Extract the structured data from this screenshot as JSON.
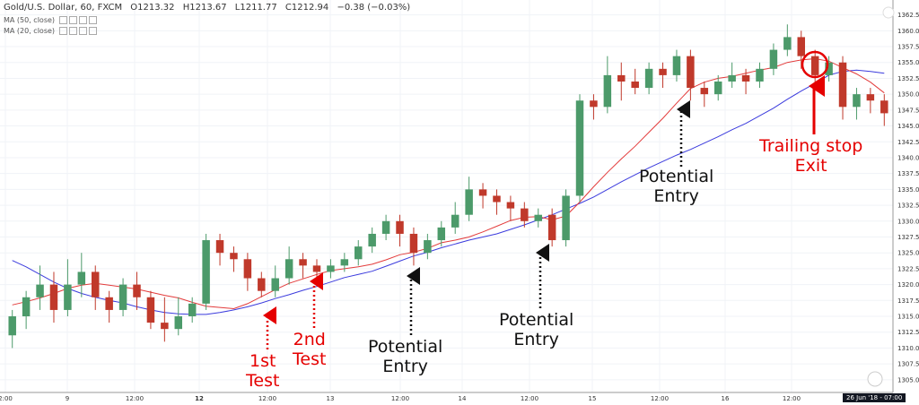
{
  "header": {
    "symbol": "Gold/U.S. Dollar, 60, FXCM",
    "open": "O1213.32",
    "high": "H1213.67",
    "low": "L1211.77",
    "close": "C1212.94",
    "change": "−0.38 (−0.03%)"
  },
  "indicators": [
    {
      "label": "MA (50, close)",
      "color": "#3b3bdd"
    },
    {
      "label": "MA (20, close)",
      "color": "#e33b3b"
    }
  ],
  "annotations": {
    "first_test": [
      "1st",
      "Test"
    ],
    "second_test": [
      "2nd",
      "Test"
    ],
    "entry1": [
      "Potential",
      "Entry"
    ],
    "entry2": [
      "Potential",
      "Entry"
    ],
    "entry3": [
      "Potential",
      "Entry"
    ],
    "exit": [
      "Trailing stop",
      "Exit"
    ]
  },
  "date_badge": "26 Jun '18 - 07:00",
  "colors": {
    "up": "#4c9a6a",
    "down": "#c0392b",
    "ma20": "#e33b3b",
    "ma50": "#3b3bdd",
    "annotation_red": "#e50000"
  },
  "chart_data": {
    "type": "candlestick",
    "y_ticks": [
      "1362.50",
      "1360.00",
      "1357.50",
      "1355.00",
      "1352.50",
      "1350.00",
      "1347.50",
      "1345.00",
      "1342.50",
      "1340.00",
      "1337.50",
      "1335.00",
      "1332.50",
      "1330.00",
      "1327.50",
      "1325.00",
      "1322.50",
      "1320.00",
      "1317.50",
      "1315.00",
      "1312.50",
      "1310.00",
      "1307.50",
      "1305.00"
    ],
    "ylim": [
      1303,
      1364
    ],
    "x_ticks": [
      "2:00",
      "9",
      "12:00",
      "12",
      "12:00",
      "13",
      "12:00",
      "14",
      "12:00",
      "15",
      "12:00",
      "16",
      "12:00"
    ],
    "ma20": [
      1316.8,
      1317.3,
      1317.9,
      1318.6,
      1319.4,
      1319.9,
      1320.2,
      1319.9,
      1319.6,
      1319.3,
      1318.8,
      1318.3,
      1317.9,
      1317.2,
      1316.6,
      1316.4,
      1316.2,
      1317,
      1318.1,
      1319.2,
      1320.2,
      1320.9,
      1321.6,
      1322.2,
      1322.5,
      1322.8,
      1323.2,
      1323.9,
      1324.7,
      1325.1,
      1325.7,
      1326.6,
      1327,
      1327.5,
      1328.3,
      1329.2,
      1330.1,
      1330.6,
      1330.7,
      1330.2,
      1330.8,
      1333,
      1335.4,
      1337.7,
      1339.8,
      1341.8,
      1344,
      1346.2,
      1348.6,
      1350.9,
      1351.9,
      1352.5,
      1352.8,
      1353.3,
      1353.8,
      1354.2,
      1355,
      1355.4,
      1355.6,
      1355.2,
      1354.2,
      1353.2,
      1351.9,
      1350.2
    ],
    "ma50": [
      1323.8,
      1322.8,
      1321.6,
      1320.4,
      1319.4,
      1318.6,
      1318,
      1317.5,
      1317.1,
      1316.5,
      1316,
      1315.6,
      1315.4,
      1315.3,
      1315.3,
      1315.6,
      1316,
      1316.5,
      1317.1,
      1317.8,
      1318.4,
      1319.1,
      1319.7,
      1320.4,
      1321.1,
      1321.6,
      1322.1,
      1322.9,
      1323.7,
      1324.5,
      1325.1,
      1325.8,
      1326.4,
      1327,
      1327.5,
      1328,
      1328.7,
      1329.4,
      1330.2,
      1331,
      1331.9,
      1332.8,
      1333.8,
      1335,
      1336.2,
      1337.3,
      1338.4,
      1339.4,
      1340.4,
      1341.3,
      1342.3,
      1343.3,
      1344.4,
      1345.4,
      1346.6,
      1347.8,
      1349.2,
      1350.5,
      1351.7,
      1353,
      1353.6,
      1353.8,
      1353.6,
      1353.3
    ],
    "candles": [
      [
        1312,
        1315,
        1310,
        1316
      ],
      [
        1315,
        1318,
        1313,
        1319
      ],
      [
        1318,
        1320,
        1316,
        1323
      ],
      [
        1320,
        1316,
        1314,
        1322
      ],
      [
        1316,
        1320,
        1315,
        1324
      ],
      [
        1320,
        1322,
        1318,
        1325
      ],
      [
        1322,
        1318,
        1316,
        1323
      ],
      [
        1318,
        1316,
        1314,
        1319
      ],
      [
        1316,
        1320,
        1315,
        1321
      ],
      [
        1320,
        1318,
        1316,
        1322
      ],
      [
        1318,
        1314,
        1313,
        1319
      ],
      [
        1314,
        1313,
        1311,
        1318
      ],
      [
        1313,
        1315,
        1312,
        1318
      ],
      [
        1315,
        1317,
        1314,
        1318
      ],
      [
        1317,
        1327,
        1316,
        1328
      ],
      [
        1327,
        1325,
        1323,
        1328
      ],
      [
        1325,
        1324,
        1322,
        1326
      ],
      [
        1324,
        1321,
        1319,
        1325
      ],
      [
        1321,
        1319,
        1318,
        1322
      ],
      [
        1319,
        1321,
        1318,
        1323
      ],
      [
        1321,
        1324,
        1320,
        1326
      ],
      [
        1324,
        1323,
        1321,
        1325
      ],
      [
        1323,
        1322,
        1320,
        1324
      ],
      [
        1322,
        1323,
        1321,
        1324
      ],
      [
        1323,
        1324,
        1322,
        1325
      ],
      [
        1324,
        1326,
        1323,
        1327
      ],
      [
        1326,
        1328,
        1325,
        1329
      ],
      [
        1328,
        1330,
        1327,
        1331
      ],
      [
        1330,
        1328,
        1326,
        1331
      ],
      [
        1328,
        1325,
        1323,
        1329
      ],
      [
        1325,
        1327,
        1324,
        1328
      ],
      [
        1327,
        1329,
        1326,
        1330
      ],
      [
        1329,
        1331,
        1328,
        1333
      ],
      [
        1331,
        1335,
        1330,
        1337
      ],
      [
        1335,
        1334,
        1332,
        1336
      ],
      [
        1334,
        1333,
        1331,
        1335
      ],
      [
        1333,
        1332,
        1330,
        1334
      ],
      [
        1332,
        1330,
        1329,
        1333
      ],
      [
        1330,
        1331,
        1329,
        1332
      ],
      [
        1331,
        1327,
        1326,
        1332
      ],
      [
        1327,
        1334,
        1326,
        1335
      ],
      [
        1334,
        1349,
        1333,
        1350
      ],
      [
        1349,
        1348,
        1346,
        1350
      ],
      [
        1348,
        1353,
        1347,
        1356
      ],
      [
        1353,
        1352,
        1349,
        1355
      ],
      [
        1352,
        1351,
        1350,
        1354
      ],
      [
        1351,
        1354,
        1350,
        1355
      ],
      [
        1354,
        1353,
        1351,
        1355
      ],
      [
        1353,
        1356,
        1352,
        1357
      ],
      [
        1356,
        1351,
        1349,
        1357
      ],
      [
        1351,
        1350,
        1348,
        1352
      ],
      [
        1350,
        1352,
        1349,
        1353
      ],
      [
        1352,
        1353,
        1351,
        1355
      ],
      [
        1353,
        1352,
        1350,
        1354
      ],
      [
        1352,
        1354,
        1351,
        1355
      ],
      [
        1354,
        1357,
        1353,
        1358
      ],
      [
        1357,
        1359,
        1356,
        1361
      ],
      [
        1359,
        1356,
        1354,
        1360
      ],
      [
        1356,
        1353,
        1351,
        1357
      ],
      [
        1353,
        1355,
        1352,
        1356
      ],
      [
        1355,
        1348,
        1346,
        1356
      ],
      [
        1348,
        1350,
        1346,
        1351
      ],
      [
        1350,
        1349,
        1347,
        1351
      ],
      [
        1349,
        1347,
        1345,
        1350
      ]
    ]
  }
}
